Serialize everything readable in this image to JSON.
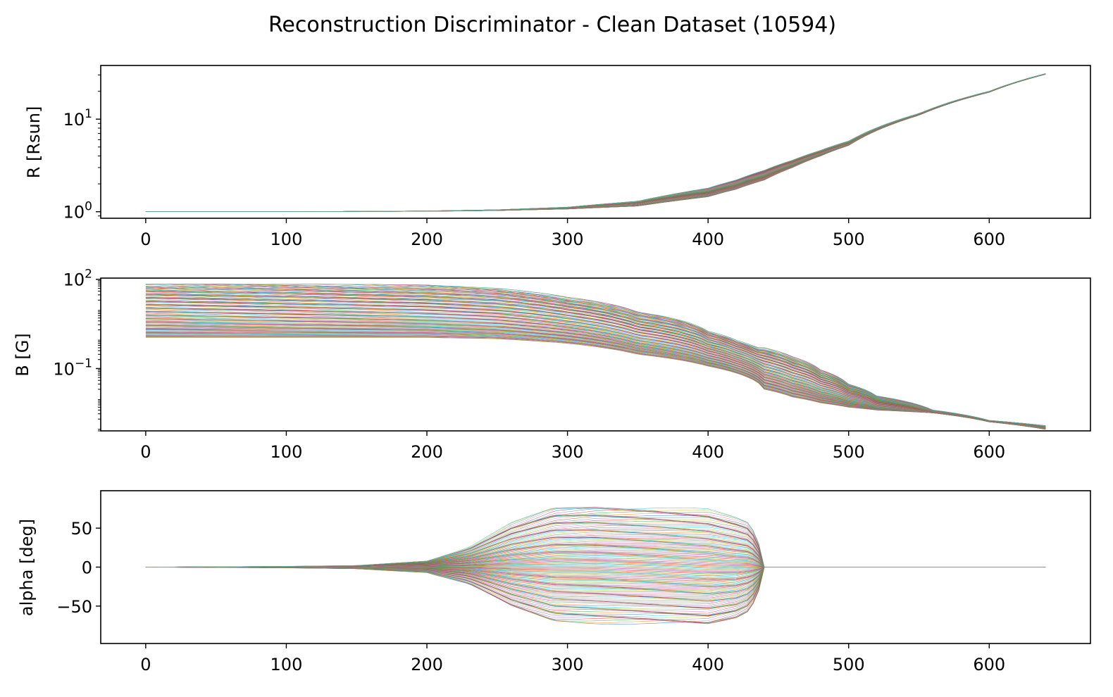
{
  "figure": {
    "title": "Reconstruction Discriminator - Clean Dataset (10594)"
  },
  "colors": {
    "series_palette": [
      "#1f77b4",
      "#ff7f0e",
      "#2ca02c",
      "#d62728",
      "#9467bd",
      "#8c564b",
      "#e377c2",
      "#7f7f7f",
      "#bcbd22",
      "#17becf"
    ],
    "axes": "#000000",
    "background": "#ffffff"
  },
  "chart_data": [
    {
      "type": "line",
      "panel": "R",
      "ylabel": "R [Rsun]",
      "xlabel": "",
      "yscale": "log",
      "xlim": [
        -32,
        672
      ],
      "ylim": [
        0.85,
        38
      ],
      "x_ticks": [
        "0",
        "100",
        "200",
        "300",
        "400",
        "500",
        "600"
      ],
      "y_ticks": [
        {
          "value": 1,
          "base": "10",
          "exp": "0"
        },
        {
          "value": 10,
          "base": "10",
          "exp": "1"
        }
      ],
      "grid": false,
      "legend": "none",
      "series_count": 10594,
      "envelope": {
        "x": [
          0,
          100,
          200,
          250,
          300,
          350,
          400,
          420,
          440,
          460,
          480,
          500,
          550,
          600,
          640
        ],
        "upper": [
          1.0,
          1.0,
          1.02,
          1.05,
          1.12,
          1.3,
          1.8,
          2.2,
          2.8,
          3.6,
          4.6,
          5.8,
          11.5,
          20.0,
          31.0
        ],
        "lower": [
          1.0,
          1.0,
          1.01,
          1.03,
          1.07,
          1.15,
          1.45,
          1.75,
          2.2,
          3.0,
          4.0,
          5.2,
          11.0,
          19.5,
          30.5
        ]
      }
    },
    {
      "type": "line",
      "panel": "B",
      "ylabel": "B [G]",
      "xlabel": "",
      "yscale": "log",
      "xlim": [
        -32,
        672
      ],
      "ylim": [
        0.0008,
        110
      ],
      "x_ticks": [
        "0",
        "100",
        "200",
        "300",
        "400",
        "500",
        "600"
      ],
      "y_ticks": [
        {
          "value": 100,
          "base": "10",
          "exp": "2"
        },
        {
          "value": 0.1,
          "base": "10",
          "exp": "−1"
        }
      ],
      "grid": false,
      "legend": "none",
      "series_count": 10594,
      "envelope": {
        "x": [
          0,
          100,
          200,
          250,
          300,
          350,
          400,
          420,
          435,
          440,
          460,
          480,
          500,
          520,
          560,
          600,
          640
        ],
        "upper": [
          70,
          70,
          65,
          50,
          25,
          8,
          1.8,
          0.9,
          0.5,
          0.5,
          0.25,
          0.09,
          0.03,
          0.012,
          0.004,
          0.0018,
          0.0012
        ],
        "lower": [
          1.1,
          1.1,
          1.1,
          1.0,
          0.7,
          0.3,
          0.12,
          0.07,
          0.035,
          0.02,
          0.011,
          0.007,
          0.005,
          0.004,
          0.0032,
          0.0016,
          0.0009
        ]
      }
    },
    {
      "type": "line",
      "panel": "alpha",
      "ylabel": "alpha [deg]",
      "xlabel": "",
      "yscale": "linear",
      "xlim": [
        -32,
        672
      ],
      "ylim": [
        -98,
        98
      ],
      "x_ticks": [
        "0",
        "100",
        "200",
        "300",
        "400",
        "500",
        "600"
      ],
      "y_ticks": [
        {
          "value": 50,
          "label": "50"
        },
        {
          "value": 0,
          "label": "0"
        },
        {
          "value": -50,
          "label": "−50"
        }
      ],
      "grid": false,
      "legend": "none",
      "series_count": 10594,
      "envelope": {
        "x": [
          0,
          100,
          150,
          200,
          230,
          260,
          290,
          320,
          360,
          400,
          420,
          430,
          436,
          440,
          640
        ],
        "upper": [
          0,
          1,
          2,
          8,
          25,
          55,
          75,
          78,
          76,
          72,
          62,
          55,
          30,
          0,
          0
        ],
        "lower": [
          0,
          -1,
          -2,
          -7,
          -22,
          -50,
          -68,
          -70,
          -72,
          -74,
          -65,
          -55,
          -30,
          0,
          0
        ]
      }
    }
  ]
}
